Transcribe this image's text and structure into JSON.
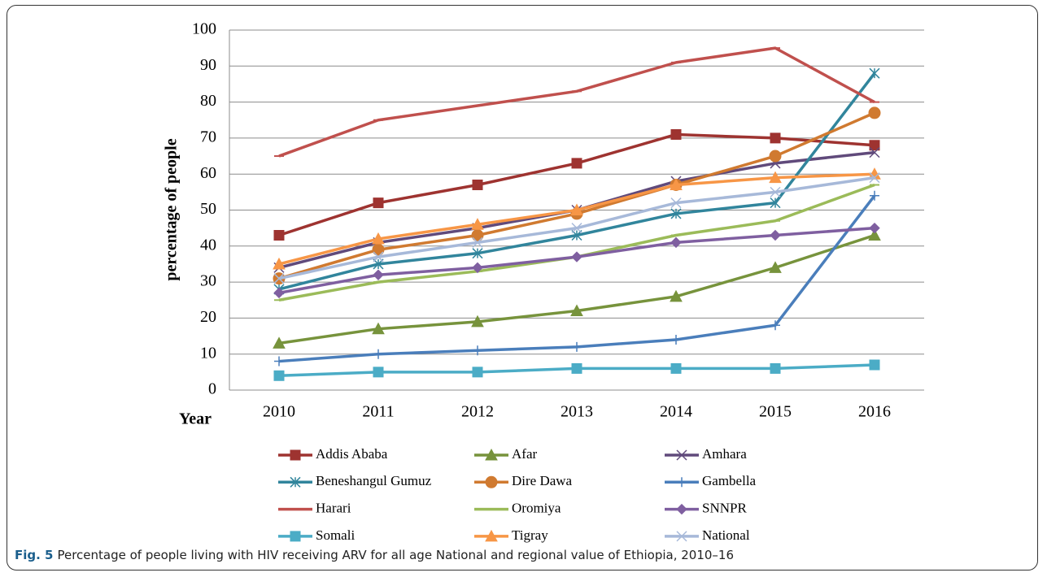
{
  "chart_data": {
    "type": "line",
    "y_label": "percentage of people",
    "x_label": "Year",
    "categories": [
      "2010",
      "2011",
      "2012",
      "2013",
      "2014",
      "2015",
      "2016"
    ],
    "ylim": [
      0,
      100
    ],
    "yticks": [
      0,
      10,
      20,
      30,
      40,
      50,
      60,
      70,
      80,
      90,
      100
    ],
    "grid": true,
    "series": [
      {
        "name": "Addis Ababa",
        "color": "#9e3330",
        "marker": "square",
        "values": [
          43,
          52,
          57,
          63,
          71,
          70,
          68
        ]
      },
      {
        "name": "Afar",
        "color": "#77933c",
        "marker": "triangle",
        "values": [
          13,
          17,
          19,
          22,
          26,
          34,
          43
        ]
      },
      {
        "name": "Amhara",
        "color": "#604a7b",
        "marker": "x",
        "values": [
          34,
          41,
          45,
          50,
          58,
          63,
          66
        ]
      },
      {
        "name": "Beneshangul Gumuz",
        "color": "#31859c",
        "marker": "asterisk",
        "values": [
          28,
          35,
          38,
          43,
          49,
          52,
          88
        ]
      },
      {
        "name": "Dire Dawa",
        "color": "#d07a30",
        "marker": "circle",
        "values": [
          31,
          39,
          43,
          49,
          57,
          65,
          77
        ]
      },
      {
        "name": "Gambella",
        "color": "#4a7ebb",
        "marker": "plus",
        "values": [
          8,
          10,
          11,
          12,
          14,
          18,
          54
        ]
      },
      {
        "name": "Harari",
        "color": "#c0504d",
        "marker": "dash",
        "values": [
          65,
          75,
          79,
          83,
          91,
          95,
          80
        ]
      },
      {
        "name": "Oromiya",
        "color": "#9bbb59",
        "marker": "dash",
        "values": [
          25,
          30,
          33,
          37,
          43,
          47,
          57
        ]
      },
      {
        "name": "SNNPR",
        "color": "#7f5fa0",
        "marker": "diamond",
        "values": [
          27,
          32,
          34,
          37,
          41,
          43,
          45
        ]
      },
      {
        "name": "Somali",
        "color": "#4bacc6",
        "marker": "square",
        "values": [
          4,
          5,
          5,
          6,
          6,
          6,
          7
        ]
      },
      {
        "name": "Tigray",
        "color": "#f79646",
        "marker": "triangle",
        "values": [
          35,
          42,
          46,
          50,
          57,
          59,
          60
        ]
      },
      {
        "name": "National",
        "color": "#a7b9d9",
        "marker": "x",
        "values": [
          31,
          37,
          41,
          45,
          52,
          55,
          59
        ]
      }
    ]
  },
  "caption": {
    "label": "Fig. 5",
    "text": "Percentage of people living with HIV receiving ARV for all age National and regional value of Ethiopia, 2010–16"
  }
}
